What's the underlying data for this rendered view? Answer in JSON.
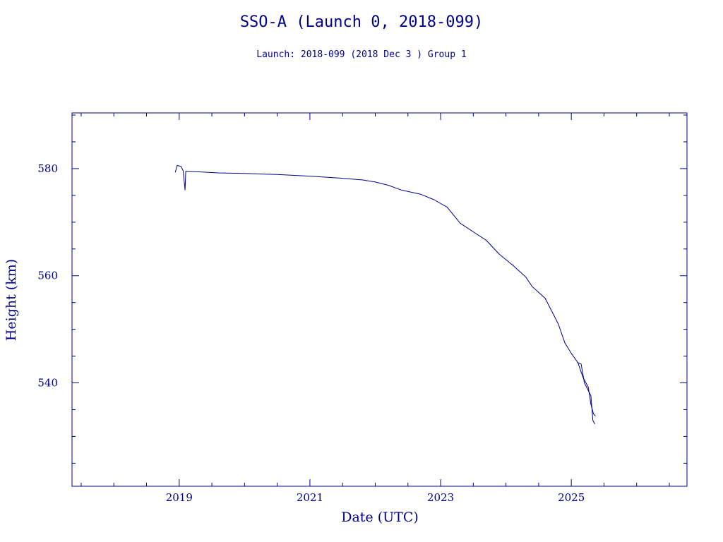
{
  "chart_data": {
    "type": "line",
    "title": "SSO-A (Launch 0, 2018-099)",
    "subtitle": "Launch: 2018-099  (2018 Dec  3 )  Group 1",
    "xlabel": "Date (UTC)",
    "ylabel": "Height (km)",
    "xlim": [
      2017.36,
      2026.77
    ],
    "ylim": [
      520.7,
      590.4
    ],
    "x_ticks": [
      2019,
      2021,
      2023,
      2025
    ],
    "y_ticks": [
      540,
      560,
      580
    ],
    "x_tick_labels": [
      "2019",
      "2021",
      "2023",
      "2025"
    ],
    "y_tick_labels": [
      "540",
      "560",
      "580"
    ],
    "grid": false,
    "color": "#00008b",
    "series": [
      {
        "values": [
          [
            2018.94,
            579.3
          ],
          [
            2018.97,
            580.6
          ],
          [
            2019.03,
            580.4
          ],
          [
            2019.06,
            579.6
          ],
          [
            2019.09,
            576.0
          ],
          [
            2019.1,
            579.5
          ],
          [
            2019.3,
            579.4
          ],
          [
            2019.6,
            579.2
          ],
          [
            2020.0,
            579.1
          ],
          [
            2020.5,
            578.9
          ],
          [
            2021.0,
            578.6
          ],
          [
            2021.5,
            578.2
          ],
          [
            2021.8,
            577.9
          ],
          [
            2022.0,
            577.5
          ],
          [
            2022.2,
            576.9
          ],
          [
            2022.4,
            576.0
          ],
          [
            2022.7,
            575.2
          ],
          [
            2022.9,
            574.2
          ],
          [
            2023.1,
            572.8
          ],
          [
            2023.3,
            569.8
          ],
          [
            2023.5,
            568.2
          ],
          [
            2023.7,
            566.6
          ],
          [
            2023.9,
            564.0
          ],
          [
            2024.1,
            562.0
          ],
          [
            2024.3,
            559.8
          ],
          [
            2024.4,
            558.0
          ],
          [
            2024.6,
            555.8
          ],
          [
            2024.8,
            551.0
          ],
          [
            2024.9,
            547.5
          ],
          [
            2025.0,
            545.5
          ],
          [
            2025.1,
            543.8
          ],
          [
            2025.15,
            543.5
          ],
          [
            2025.2,
            540.0
          ],
          [
            2025.3,
            537.6
          ],
          [
            2025.33,
            533.0
          ],
          [
            2025.36,
            532.3
          ]
        ]
      },
      {
        "values": [
          [
            2025.1,
            543.8
          ],
          [
            2025.18,
            541.0
          ],
          [
            2025.26,
            539.2
          ],
          [
            2025.3,
            536.0
          ],
          [
            2025.34,
            534.2
          ],
          [
            2025.37,
            533.8
          ]
        ]
      }
    ]
  }
}
